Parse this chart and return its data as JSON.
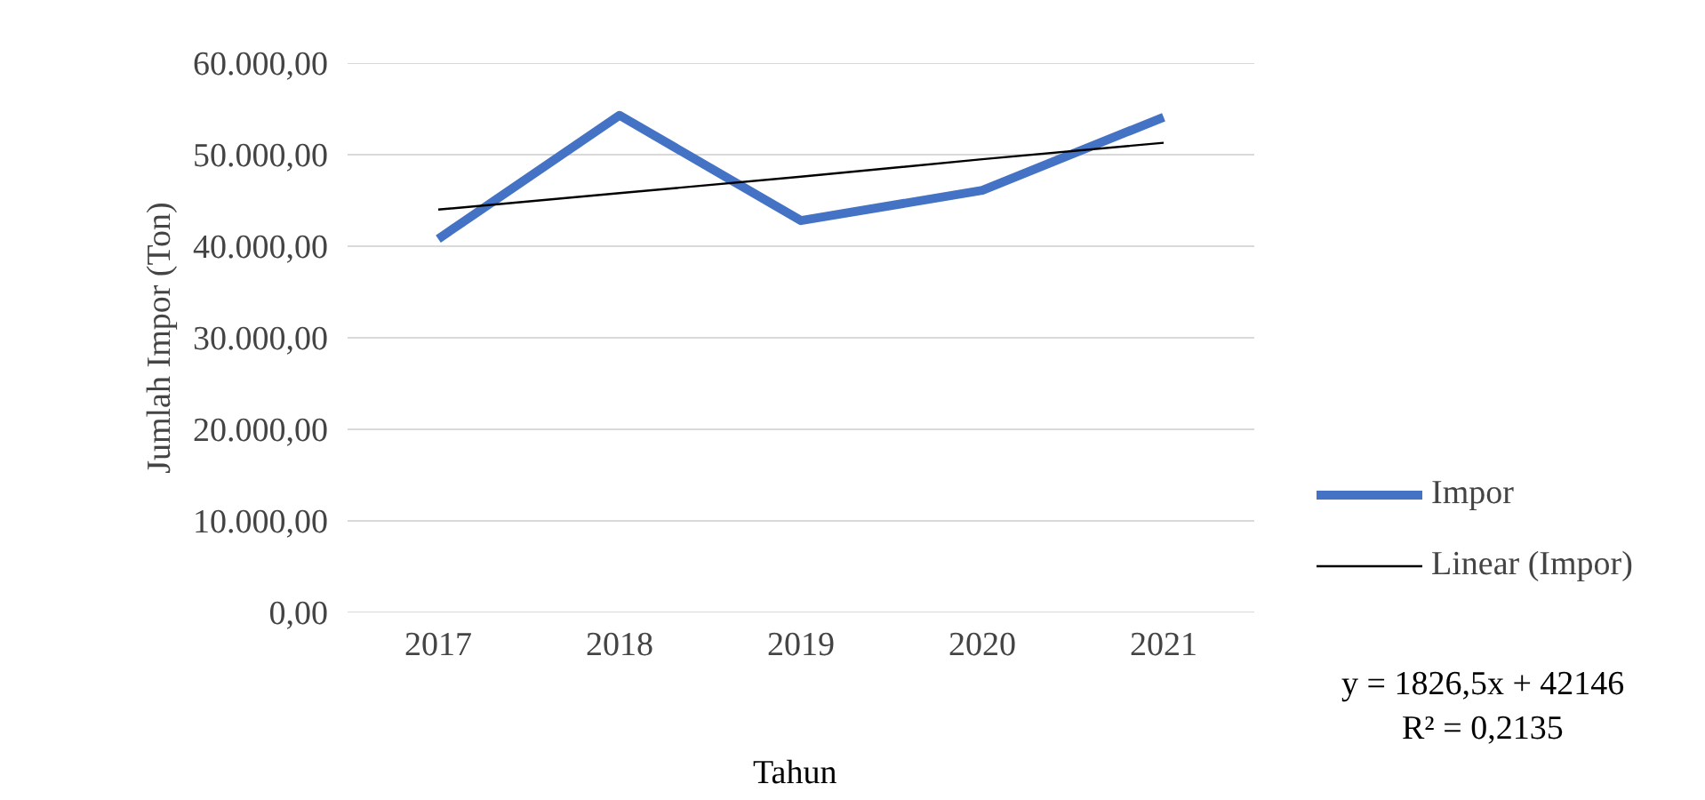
{
  "chart_data": {
    "type": "line",
    "xlabel": "Tahun",
    "ylabel": "Jumlah Impor (Ton)",
    "categories": [
      "2017",
      "2018",
      "2019",
      "2020",
      "2021"
    ],
    "series": [
      {
        "name": "Impor",
        "color": "#4472c4",
        "values": [
          40800,
          54300,
          42800,
          46100,
          54100
        ]
      },
      {
        "name": "Linear (Impor)",
        "type": "line",
        "color": "#000000",
        "values": [
          44000,
          45800,
          47600,
          49500,
          51300
        ]
      }
    ],
    "ylim": [
      0,
      60000
    ],
    "yticks": [
      {
        "value": 0,
        "label": "0,00"
      },
      {
        "value": 10000,
        "label": "10.000,00"
      },
      {
        "value": 20000,
        "label": "20.000,00"
      },
      {
        "value": 30000,
        "label": "30.000,00"
      },
      {
        "value": 40000,
        "label": "40.000,00"
      },
      {
        "value": 50000,
        "label": "50.000,00"
      },
      {
        "value": 60000,
        "label": "60.000,00"
      }
    ],
    "grid": "y",
    "legend": "right",
    "annotations": [
      "y = 1826,5x + 42146",
      "R² = 0,2135"
    ]
  }
}
